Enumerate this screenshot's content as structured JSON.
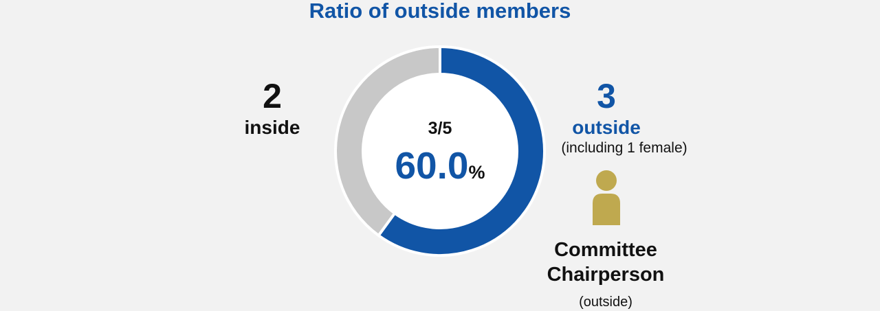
{
  "chart_data": {
    "type": "pie",
    "variant": "donut",
    "title": "Ratio of outside members",
    "slices": [
      {
        "label": "outside",
        "value": 3,
        "color": "#1155a6"
      },
      {
        "label": "inside",
        "value": 2,
        "color": "#c8c8c8"
      }
    ],
    "center": {
      "fraction": "3/5",
      "percent_value": "60.0",
      "percent_symbol": "%"
    },
    "inside": {
      "count": "2",
      "label": "inside"
    },
    "outside": {
      "count": "3",
      "label": "outside",
      "note": "(including 1 female)"
    },
    "chairperson": {
      "icon": "person-icon",
      "icon_color": "#bfa94f",
      "label_line1": "Committee",
      "label_line2": "Chairperson",
      "note": "(outside)"
    }
  }
}
